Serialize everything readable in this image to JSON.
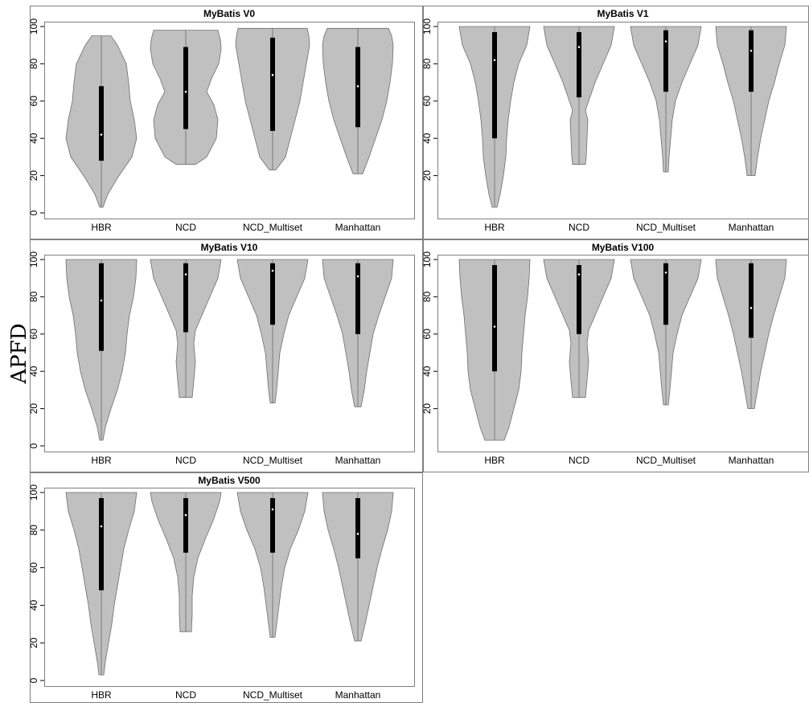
{
  "figure": {
    "ylabel": "APFD",
    "colors": {
      "violin_fill": "#c0c0c0",
      "violin_stroke": "#6e6e6e",
      "box": "#000000",
      "median": "#ffffff",
      "frame": "#808080"
    }
  },
  "chart_data": [
    {
      "type": "violin",
      "title": "MyBatis V0",
      "categories": [
        "HBR",
        "NCD",
        "NCD_Multiset",
        "Manhattan"
      ],
      "ylim": [
        0,
        100
      ],
      "yticks": [
        0,
        20,
        40,
        60,
        80,
        100
      ],
      "grid": false,
      "series": [
        {
          "category": "HBR",
          "min": 3,
          "q1": 28,
          "median": 42,
          "q3": 68,
          "max": 95,
          "density": [
            [
              3,
              2
            ],
            [
              10,
              8
            ],
            [
              20,
              22
            ],
            [
              30,
              38
            ],
            [
              40,
              44
            ],
            [
              50,
              41
            ],
            [
              60,
              36
            ],
            [
              70,
              34
            ],
            [
              80,
              31
            ],
            [
              90,
              20
            ],
            [
              95,
              12
            ]
          ]
        },
        {
          "category": "NCD",
          "min": 26,
          "q1": 45,
          "median": 65,
          "q3": 89,
          "max": 98,
          "density": [
            [
              26,
              12
            ],
            [
              30,
              26
            ],
            [
              40,
              38
            ],
            [
              50,
              40
            ],
            [
              58,
              35
            ],
            [
              65,
              26
            ],
            [
              72,
              32
            ],
            [
              80,
              41
            ],
            [
              88,
              44
            ],
            [
              93,
              43
            ],
            [
              98,
              40
            ]
          ]
        },
        {
          "category": "NCD_Multiset",
          "min": 23,
          "q1": 44,
          "median": 74,
          "q3": 94,
          "max": 99,
          "density": [
            [
              23,
              4
            ],
            [
              30,
              16
            ],
            [
              40,
              22
            ],
            [
              50,
              28
            ],
            [
              60,
              34
            ],
            [
              70,
              38
            ],
            [
              80,
              42
            ],
            [
              90,
              46
            ],
            [
              95,
              45
            ],
            [
              99,
              43
            ]
          ]
        },
        {
          "category": "Manhattan",
          "min": 21,
          "q1": 46,
          "median": 68,
          "q3": 89,
          "max": 99,
          "density": [
            [
              21,
              6
            ],
            [
              30,
              14
            ],
            [
              40,
              22
            ],
            [
              50,
              30
            ],
            [
              60,
              36
            ],
            [
              70,
              40
            ],
            [
              80,
              43
            ],
            [
              90,
              44
            ],
            [
              95,
              42
            ],
            [
              99,
              38
            ]
          ]
        }
      ]
    },
    {
      "type": "violin",
      "title": "MyBatis V1",
      "categories": [
        "HBR",
        "NCD",
        "NCD_Multiset",
        "Manhattan"
      ],
      "ylim": [
        0,
        100
      ],
      "yticks": [
        20,
        40,
        60,
        80,
        100
      ],
      "grid": false,
      "series": [
        {
          "category": "HBR",
          "min": 3,
          "q1": 40,
          "median": 82,
          "q3": 97,
          "max": 100,
          "density": [
            [
              3,
              3
            ],
            [
              10,
              7
            ],
            [
              20,
              11
            ],
            [
              30,
              14
            ],
            [
              40,
              15
            ],
            [
              50,
              17
            ],
            [
              60,
              20
            ],
            [
              70,
              24
            ],
            [
              80,
              30
            ],
            [
              90,
              40
            ],
            [
              100,
              44
            ]
          ]
        },
        {
          "category": "NCD",
          "min": 26,
          "q1": 62,
          "median": 89,
          "q3": 97,
          "max": 100,
          "density": [
            [
              26,
              8
            ],
            [
              30,
              9
            ],
            [
              40,
              10
            ],
            [
              50,
              11
            ],
            [
              55,
              8
            ],
            [
              60,
              12
            ],
            [
              70,
              20
            ],
            [
              80,
              30
            ],
            [
              90,
              40
            ],
            [
              100,
              44
            ]
          ]
        },
        {
          "category": "NCD_Multiset",
          "min": 22,
          "q1": 65,
          "median": 92,
          "q3": 98,
          "max": 100,
          "density": [
            [
              22,
              3
            ],
            [
              30,
              4
            ],
            [
              40,
              6
            ],
            [
              50,
              8
            ],
            [
              60,
              12
            ],
            [
              70,
              20
            ],
            [
              80,
              30
            ],
            [
              90,
              40
            ],
            [
              100,
              44
            ]
          ]
        },
        {
          "category": "Manhattan",
          "min": 20,
          "q1": 65,
          "median": 87,
          "q3": 98,
          "max": 100,
          "density": [
            [
              20,
              5
            ],
            [
              30,
              8
            ],
            [
              40,
              12
            ],
            [
              50,
              17
            ],
            [
              60,
              22
            ],
            [
              70,
              29
            ],
            [
              80,
              35
            ],
            [
              90,
              42
            ],
            [
              100,
              44
            ]
          ]
        }
      ]
    },
    {
      "type": "violin",
      "title": "MyBatis V10",
      "categories": [
        "HBR",
        "NCD",
        "NCD_Multiset",
        "Manhattan"
      ],
      "ylim": [
        0,
        100
      ],
      "yticks": [
        0,
        20,
        40,
        60,
        80,
        100
      ],
      "grid": false,
      "series": [
        {
          "category": "HBR",
          "min": 3,
          "q1": 51,
          "median": 78,
          "q3": 98,
          "max": 100,
          "density": [
            [
              3,
              2
            ],
            [
              10,
              5
            ],
            [
              20,
              12
            ],
            [
              30,
              20
            ],
            [
              40,
              26
            ],
            [
              50,
              30
            ],
            [
              60,
              32
            ],
            [
              70,
              35
            ],
            [
              80,
              40
            ],
            [
              90,
              43
            ],
            [
              100,
              44
            ]
          ]
        },
        {
          "category": "NCD",
          "min": 26,
          "q1": 61,
          "median": 92,
          "q3": 98,
          "max": 100,
          "density": [
            [
              26,
              8
            ],
            [
              35,
              10
            ],
            [
              45,
              12
            ],
            [
              55,
              10
            ],
            [
              62,
              12
            ],
            [
              70,
              20
            ],
            [
              80,
              30
            ],
            [
              90,
              40
            ],
            [
              100,
              44
            ]
          ]
        },
        {
          "category": "NCD_Multiset",
          "min": 23,
          "q1": 65,
          "median": 94,
          "q3": 98,
          "max": 100,
          "density": [
            [
              23,
              3
            ],
            [
              30,
              5
            ],
            [
              40,
              7
            ],
            [
              50,
              9
            ],
            [
              60,
              14
            ],
            [
              70,
              20
            ],
            [
              80,
              30
            ],
            [
              90,
              40
            ],
            [
              100,
              44
            ]
          ]
        },
        {
          "category": "Manhattan",
          "min": 21,
          "q1": 60,
          "median": 91,
          "q3": 98,
          "max": 100,
          "density": [
            [
              21,
              4
            ],
            [
              30,
              8
            ],
            [
              40,
              11
            ],
            [
              50,
              15
            ],
            [
              60,
              19
            ],
            [
              70,
              26
            ],
            [
              80,
              34
            ],
            [
              90,
              42
            ],
            [
              100,
              44
            ]
          ]
        }
      ]
    },
    {
      "type": "violin",
      "title": "MyBatis V100",
      "categories": [
        "HBR",
        "NCD",
        "NCD_Multiset",
        "Manhattan"
      ],
      "ylim": [
        0,
        100
      ],
      "yticks": [
        20,
        40,
        60,
        80,
        100
      ],
      "grid": false,
      "series": [
        {
          "category": "HBR",
          "min": 3,
          "q1": 40,
          "median": 64,
          "q3": 97,
          "max": 100,
          "density": [
            [
              3,
              12
            ],
            [
              10,
              18
            ],
            [
              20,
              24
            ],
            [
              30,
              30
            ],
            [
              40,
              33
            ],
            [
              50,
              34
            ],
            [
              60,
              36
            ],
            [
              70,
              38
            ],
            [
              80,
              41
            ],
            [
              90,
              43
            ],
            [
              100,
              44
            ]
          ]
        },
        {
          "category": "NCD",
          "min": 26,
          "q1": 60,
          "median": 92,
          "q3": 97,
          "max": 100,
          "density": [
            [
              26,
              8
            ],
            [
              35,
              10
            ],
            [
              45,
              12
            ],
            [
              55,
              10
            ],
            [
              62,
              12
            ],
            [
              70,
              20
            ],
            [
              80,
              30
            ],
            [
              90,
              40
            ],
            [
              100,
              44
            ]
          ]
        },
        {
          "category": "NCD_Multiset",
          "min": 22,
          "q1": 65,
          "median": 93,
          "q3": 98,
          "max": 100,
          "density": [
            [
              22,
              3
            ],
            [
              30,
              5
            ],
            [
              40,
              7
            ],
            [
              50,
              9
            ],
            [
              60,
              14
            ],
            [
              70,
              20
            ],
            [
              80,
              30
            ],
            [
              90,
              40
            ],
            [
              100,
              44
            ]
          ]
        },
        {
          "category": "Manhattan",
          "min": 20,
          "q1": 58,
          "median": 74,
          "q3": 98,
          "max": 100,
          "density": [
            [
              20,
              4
            ],
            [
              30,
              8
            ],
            [
              40,
              12
            ],
            [
              50,
              17
            ],
            [
              60,
              22
            ],
            [
              70,
              28
            ],
            [
              80,
              35
            ],
            [
              90,
              42
            ],
            [
              100,
              44
            ]
          ]
        }
      ]
    },
    {
      "type": "violin",
      "title": "MyBatis V500",
      "categories": [
        "HBR",
        "NCD",
        "NCD_Multiset",
        "Manhattan"
      ],
      "ylim": [
        0,
        100
      ],
      "yticks": [
        0,
        20,
        40,
        60,
        80,
        100
      ],
      "grid": false,
      "series": [
        {
          "category": "HBR",
          "min": 3,
          "q1": 48,
          "median": 82,
          "q3": 97,
          "max": 100,
          "density": [
            [
              3,
              3
            ],
            [
              10,
              5
            ],
            [
              20,
              9
            ],
            [
              30,
              13
            ],
            [
              40,
              16
            ],
            [
              50,
              20
            ],
            [
              60,
              24
            ],
            [
              70,
              28
            ],
            [
              80,
              34
            ],
            [
              90,
              41
            ],
            [
              100,
              44
            ]
          ]
        },
        {
          "category": "NCD",
          "min": 26,
          "q1": 68,
          "median": 88,
          "q3": 97,
          "max": 100,
          "density": [
            [
              26,
              7
            ],
            [
              35,
              8
            ],
            [
              45,
              8
            ],
            [
              55,
              10
            ],
            [
              65,
              15
            ],
            [
              75,
              24
            ],
            [
              85,
              34
            ],
            [
              95,
              42
            ],
            [
              100,
              44
            ]
          ]
        },
        {
          "category": "NCD_Multiset",
          "min": 23,
          "q1": 68,
          "median": 91,
          "q3": 97,
          "max": 100,
          "density": [
            [
              23,
              3
            ],
            [
              30,
              5
            ],
            [
              40,
              8
            ],
            [
              50,
              11
            ],
            [
              60,
              15
            ],
            [
              70,
              22
            ],
            [
              80,
              32
            ],
            [
              90,
              40
            ],
            [
              100,
              44
            ]
          ]
        },
        {
          "category": "Manhattan",
          "min": 21,
          "q1": 65,
          "median": 78,
          "q3": 97,
          "max": 100,
          "density": [
            [
              21,
              4
            ],
            [
              30,
              9
            ],
            [
              40,
              14
            ],
            [
              50,
              19
            ],
            [
              60,
              24
            ],
            [
              70,
              30
            ],
            [
              80,
              37
            ],
            [
              90,
              42
            ],
            [
              100,
              44
            ]
          ]
        }
      ]
    }
  ]
}
